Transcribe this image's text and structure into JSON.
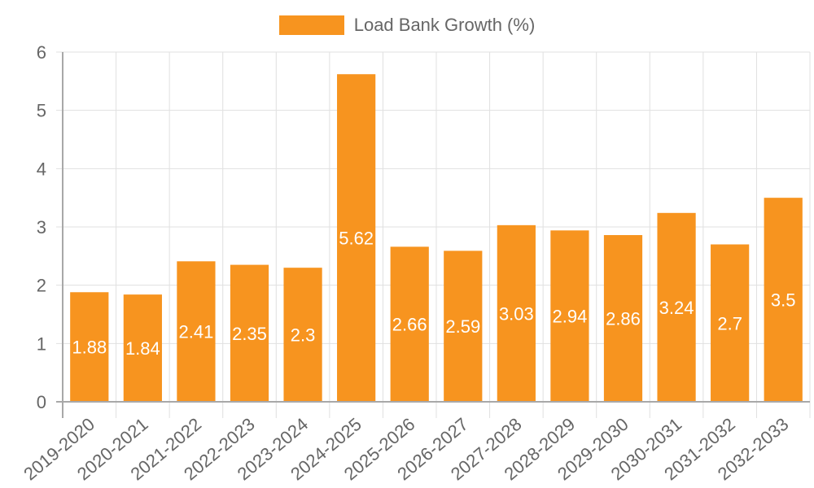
{
  "chart_data": {
    "type": "bar",
    "title": "",
    "xlabel": "",
    "ylabel": "",
    "ylim": [
      0,
      6
    ],
    "yticks": [
      0,
      1,
      2,
      3,
      4,
      5,
      6
    ],
    "grid": true,
    "legend_position": "top",
    "categories": [
      "2019-2020",
      "2020-2021",
      "2021-2022",
      "2022-2023",
      "2023-2024",
      "2024-2025",
      "2025-2026",
      "2026-2027",
      "2027-2028",
      "2028-2029",
      "2029-2030",
      "2030-2031",
      "2031-2032",
      "2032-2033"
    ],
    "series": [
      {
        "name": "Load Bank Growth (%)",
        "color": "#f7941f",
        "values": [
          1.88,
          1.84,
          2.41,
          2.35,
          2.3,
          5.62,
          2.66,
          2.59,
          3.03,
          2.94,
          2.86,
          3.24,
          2.7,
          3.5
        ],
        "data_labels": [
          "1.88",
          "1.84",
          "2.41",
          "2.35",
          "2.3",
          "5.62",
          "2.66",
          "2.59",
          "3.03",
          "2.94",
          "2.86",
          "3.24",
          "2.7",
          "3.5"
        ]
      }
    ]
  },
  "legend": {
    "label": "Load Bank Growth (%)",
    "color": "#f7941f"
  },
  "colors": {
    "bar": "#f7941f",
    "grid": "#e0e0e0",
    "axis": "#a8a8a8",
    "tick_text": "#666666",
    "data_label": "#ffffff"
  }
}
